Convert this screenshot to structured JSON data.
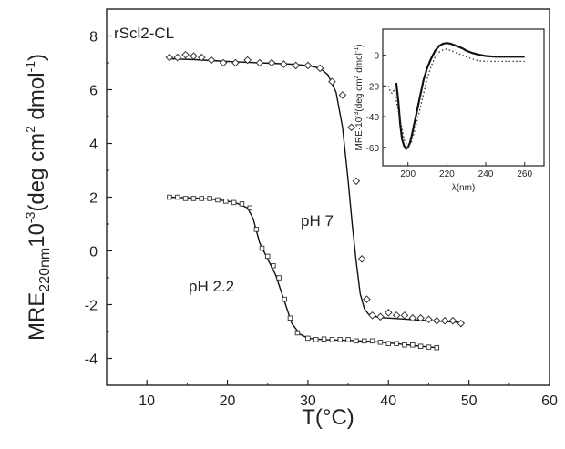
{
  "chart_data": [
    {
      "type": "line",
      "title": "",
      "annotation_label": "rScl2-CL",
      "xlabel": "T(°C)",
      "ylabel_main": "MRE",
      "ylabel_sub": "220nm",
      "ylabel_mid": "10",
      "ylabel_exp": "-3",
      "ylabel_units": "(deg cm",
      "ylabel_units_exp": "2",
      "ylabel_units_tail": " dmol",
      "ylabel_units_exp2": "-1",
      "ylabel_close": ")",
      "xlim": [
        5,
        60
      ],
      "ylim": [
        -5,
        9
      ],
      "xticks": [
        10,
        20,
        30,
        40,
        50,
        60
      ],
      "yticks": [
        -4,
        -2,
        0,
        2,
        4,
        6,
        8
      ],
      "series": [
        {
          "label": "pH 7",
          "marker": "diamond",
          "points": {
            "x": [
              12.8,
              13.8,
              14.8,
              15.8,
              16.8,
              18,
              19.5,
              21,
              22.5,
              24,
              25.5,
              27,
              28.5,
              30,
              31.5,
              33,
              34.3,
              35.4,
              36,
              36.7,
              37.3,
              38,
              39,
              40,
              41,
              42,
              43,
              44,
              45,
              46,
              47,
              48,
              49
            ],
            "y": [
              7.2,
              7.2,
              7.3,
              7.25,
              7.2,
              7.1,
              7.0,
              7.0,
              7.1,
              7.0,
              7.0,
              6.95,
              6.9,
              6.9,
              6.8,
              6.3,
              5.8,
              4.6,
              2.6,
              -0.3,
              -1.8,
              -2.4,
              -2.45,
              -2.3,
              -2.4,
              -2.4,
              -2.5,
              -2.5,
              -2.55,
              -2.6,
              -2.6,
              -2.6,
              -2.7
            ]
          },
          "fit": {
            "x": [
              12.8,
              16,
              20,
              24,
              28,
              30,
              31.5,
              32.5,
              33.5,
              34.3,
              35,
              35.5,
              36,
              36.5,
              37,
              37.5,
              38,
              39,
              41,
              44,
              47,
              49
            ],
            "y": [
              7.15,
              7.12,
              7.05,
              7.0,
              6.95,
              6.9,
              6.8,
              6.55,
              5.9,
              4.6,
              2.6,
              1.0,
              -0.4,
              -1.6,
              -2.15,
              -2.35,
              -2.42,
              -2.48,
              -2.52,
              -2.58,
              -2.63,
              -2.66
            ]
          }
        },
        {
          "label": "pH 2.2",
          "marker": "square",
          "points": {
            "x": [
              12.8,
              13.8,
              14.8,
              15.8,
              16.8,
              17.8,
              18.8,
              19.8,
              20.8,
              21.8,
              22.8,
              23.6,
              24.3,
              25,
              25.7,
              26.4,
              27.1,
              27.8,
              28.7,
              30,
              31,
              32,
              33,
              34,
              35,
              36,
              37,
              38,
              39,
              40,
              41,
              42,
              43,
              44,
              45,
              46
            ],
            "y": [
              2.0,
              2.0,
              1.95,
              1.95,
              1.95,
              1.95,
              1.9,
              1.85,
              1.8,
              1.75,
              1.6,
              0.8,
              0.1,
              -0.2,
              -0.55,
              -1.0,
              -1.8,
              -2.5,
              -3.05,
              -3.25,
              -3.3,
              -3.28,
              -3.3,
              -3.3,
              -3.3,
              -3.35,
              -3.35,
              -3.35,
              -3.4,
              -3.45,
              -3.45,
              -3.5,
              -3.5,
              -3.55,
              -3.58,
              -3.6
            ]
          },
          "fit": {
            "x": [
              12.8,
              16,
              19,
              21,
              22.5,
              23.2,
              24,
              25,
              26,
              27,
              28,
              29,
              30,
              32,
              35,
              38,
              41,
              44,
              46
            ],
            "y": [
              2.0,
              1.97,
              1.9,
              1.8,
              1.6,
              1.2,
              0.3,
              -0.3,
              -0.9,
              -1.8,
              -2.7,
              -3.1,
              -3.25,
              -3.3,
              -3.33,
              -3.37,
              -3.45,
              -3.55,
              -3.6
            ]
          }
        }
      ]
    },
    {
      "type": "line",
      "title": "",
      "xlabel": "λ(nm)",
      "ylabel_main": "MRE·10",
      "ylabel_exp": "-3",
      "ylabel_rest": "(deg cm",
      "ylabel_exp2": "2",
      "ylabel_rest2": " dmol",
      "ylabel_exp3": "-1",
      "ylabel_close": ")",
      "xlim": [
        187,
        270
      ],
      "ylim": [
        -72,
        17
      ],
      "xticks": [
        200,
        220,
        240,
        260
      ],
      "yticks": [
        0,
        -20,
        -40,
        -60
      ],
      "series": [
        {
          "name": "",
          "style": "solid",
          "x": [
            194,
            195,
            196,
            197,
            198,
            199,
            200,
            201,
            202,
            203,
            204,
            205,
            206,
            207,
            208,
            210,
            212,
            214,
            216,
            218,
            220,
            222,
            224,
            226,
            228,
            230,
            233,
            236,
            240,
            245,
            250,
            255,
            260
          ],
          "y": [
            -18,
            -30,
            -45,
            -55,
            -59,
            -61,
            -60,
            -57,
            -52,
            -46,
            -40,
            -34,
            -28,
            -22,
            -16,
            -8,
            -2,
            3,
            6,
            7.5,
            8,
            7.5,
            6.5,
            5.5,
            4.5,
            3,
            1.5,
            0.5,
            -0.5,
            -1,
            -1,
            -1,
            -1
          ]
        },
        {
          "name": "",
          "style": "dotted",
          "x": [
            190,
            191,
            192,
            193,
            194,
            196,
            198,
            200,
            202,
            204,
            206,
            208,
            210,
            212,
            214,
            216,
            218,
            220,
            222,
            225,
            228,
            232,
            236,
            240,
            245,
            250,
            255,
            260
          ],
          "y": [
            -20,
            -24,
            -25,
            -22,
            -30,
            -42,
            -55,
            -60,
            -56,
            -46,
            -36,
            -25,
            -15,
            -7,
            -1,
            2,
            3.5,
            4,
            3,
            1.5,
            0,
            -2,
            -3.5,
            -4,
            -4,
            -4,
            -4,
            -4
          ]
        }
      ]
    }
  ]
}
